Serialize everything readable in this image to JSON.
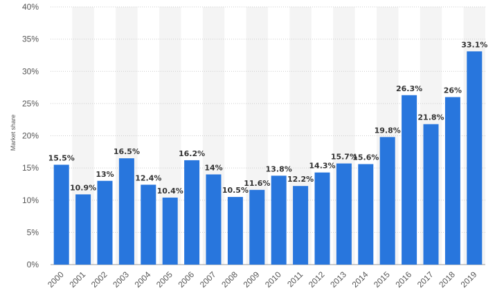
{
  "chart_data": {
    "type": "bar",
    "title": "",
    "xlabel": "",
    "ylabel": "Market share",
    "categories": [
      "2000",
      "2001",
      "2002",
      "2003",
      "2004",
      "2005",
      "2006",
      "2007",
      "2008",
      "2009",
      "2010",
      "2011",
      "2012",
      "2013",
      "2014",
      "2015",
      "2016",
      "2017",
      "2018",
      "2019"
    ],
    "values": [
      15.5,
      10.9,
      13,
      16.5,
      12.4,
      10.4,
      16.2,
      14,
      10.5,
      11.6,
      13.8,
      12.2,
      14.3,
      15.7,
      15.6,
      19.8,
      26.3,
      21.8,
      26,
      33.1
    ],
    "value_labels": [
      "15.5%",
      "10.9%",
      "13%",
      "16.5%",
      "12.4%",
      "10.4%",
      "16.2%",
      "14%",
      "10.5%",
      "11.6%",
      "13.8%",
      "12.2%",
      "14.3%",
      "15.7%",
      "15.6%",
      "19.8%",
      "26.3%",
      "21.8%",
      "26%",
      "33.1%"
    ],
    "ylim": [
      0,
      40
    ],
    "yticks": [
      0,
      5,
      10,
      15,
      20,
      25,
      30,
      35,
      40
    ],
    "ytick_labels": [
      "0%",
      "5%",
      "10%",
      "15%",
      "20%",
      "25%",
      "30%",
      "35%",
      "40%"
    ],
    "grid": true,
    "bar_color": "#2876dd",
    "band_color": "#f4f4f4"
  }
}
